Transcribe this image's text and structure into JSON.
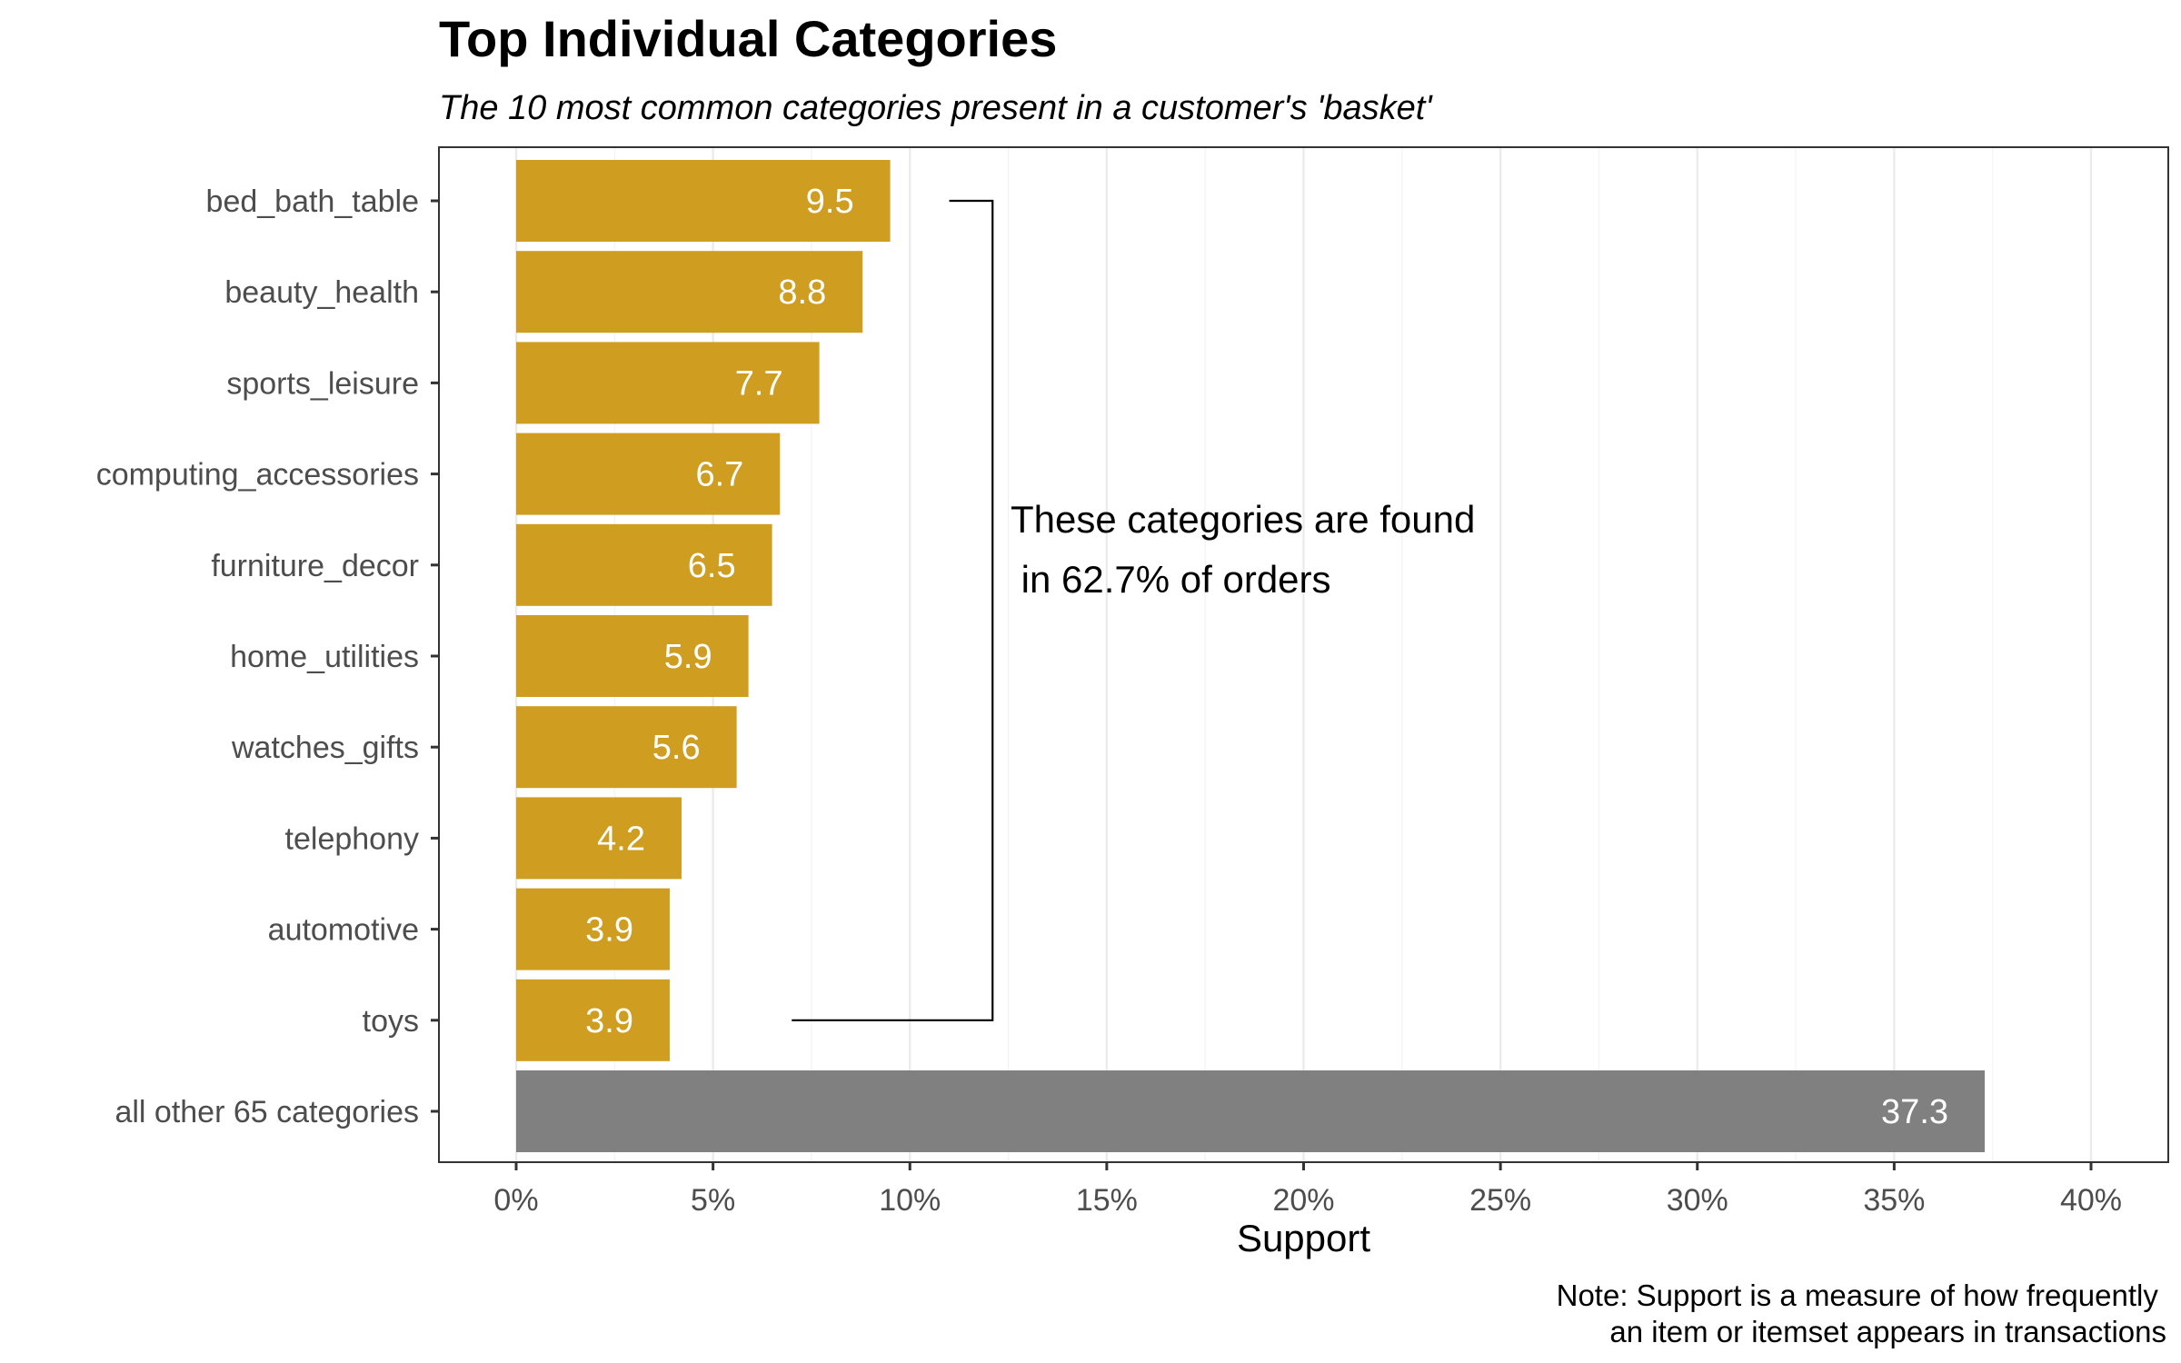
{
  "chart_data": {
    "type": "bar",
    "orientation": "horizontal",
    "title": "Top Individual Categories",
    "subtitle": "The 10 most common categories present in a customer's 'basket'",
    "xlabel": "Support",
    "ylabel": "",
    "xlim": [
      0,
      41
    ],
    "x_ticks": [
      0,
      5,
      10,
      15,
      20,
      25,
      30,
      35,
      40
    ],
    "x_tick_labels": [
      "0%",
      "5%",
      "10%",
      "15%",
      "20%",
      "25%",
      "30%",
      "35%",
      "40%"
    ],
    "categories": [
      "bed_bath_table",
      "beauty_health",
      "sports_leisure",
      "computing_accessories",
      "furniture_decor",
      "home_utilities",
      "watches_gifts",
      "telephony",
      "automotive",
      "toys",
      "all other 65 categories"
    ],
    "values": [
      9.5,
      8.8,
      7.7,
      6.7,
      6.5,
      5.9,
      5.6,
      4.2,
      3.9,
      3.9,
      37.3
    ],
    "value_labels": [
      "9.5",
      "8.8",
      "7.7",
      "6.7",
      "6.5",
      "5.9",
      "5.6",
      "4.2",
      "3.9",
      "3.9",
      "37.3"
    ],
    "bar_colors": [
      "#CF9E20",
      "#CF9E20",
      "#CF9E20",
      "#CF9E20",
      "#CF9E20",
      "#CF9E20",
      "#CF9E20",
      "#CF9E20",
      "#CF9E20",
      "#CF9E20",
      "#808080"
    ],
    "annotation": {
      "lines": [
        "These categories are found",
        " in 62.7% of orders"
      ],
      "bracket": {
        "top_category": "bed_bath_table",
        "bottom_category": "toys",
        "spine_x": 12.1,
        "top_arm_start": 11.0,
        "bottom_arm_start": 7.0
      }
    },
    "note_lines": [
      "Note: Support is a measure of how frequently ",
      "an item or itemset appears in transactions"
    ],
    "grid": "vertical",
    "legend": "none"
  }
}
